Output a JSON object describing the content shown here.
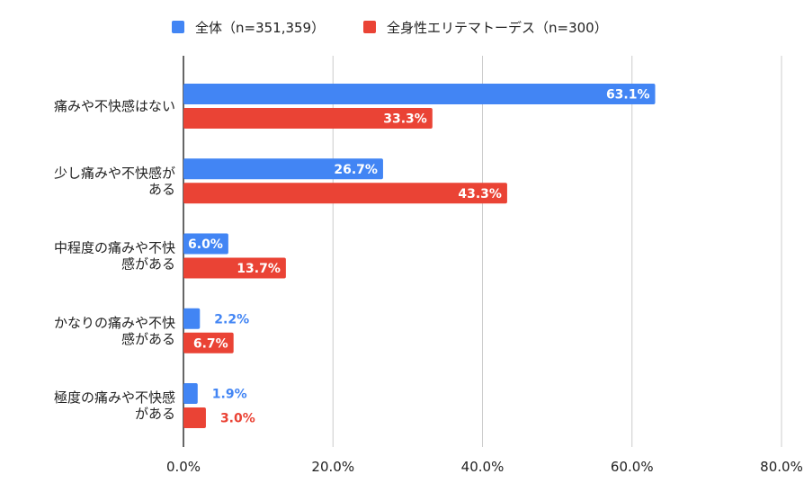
{
  "chart_data": {
    "type": "bar",
    "orientation": "horizontal",
    "categories": [
      [
        "痛みや不快感はない"
      ],
      [
        "少し痛みや不快感が",
        "ある"
      ],
      [
        "中程度の痛みや不快",
        "感がある"
      ],
      [
        "かなりの痛みや不快",
        "感がある"
      ],
      [
        "極度の痛みや不快感",
        "がある"
      ]
    ],
    "series": [
      {
        "name": "全体（n=351,359）",
        "color": "#4285f4",
        "values": [
          63.1,
          26.7,
          6.0,
          2.2,
          1.9
        ]
      },
      {
        "name": "全身性エリテマトーデス（n=300）",
        "color": "#ea4335",
        "values": [
          33.3,
          43.3,
          13.7,
          6.7,
          3.0
        ]
      }
    ],
    "value_labels": [
      [
        "63.1%",
        "26.7%",
        "6.0%",
        "2.2%",
        "1.9%"
      ],
      [
        "33.3%",
        "43.3%",
        "13.7%",
        "6.7%",
        "3.0%"
      ]
    ],
    "x_ticks": [
      "0.0%",
      "20.0%",
      "40.0%",
      "60.0%",
      "80.0%"
    ],
    "xlim": [
      0,
      80
    ],
    "grid": true,
    "legend_position": "top"
  }
}
